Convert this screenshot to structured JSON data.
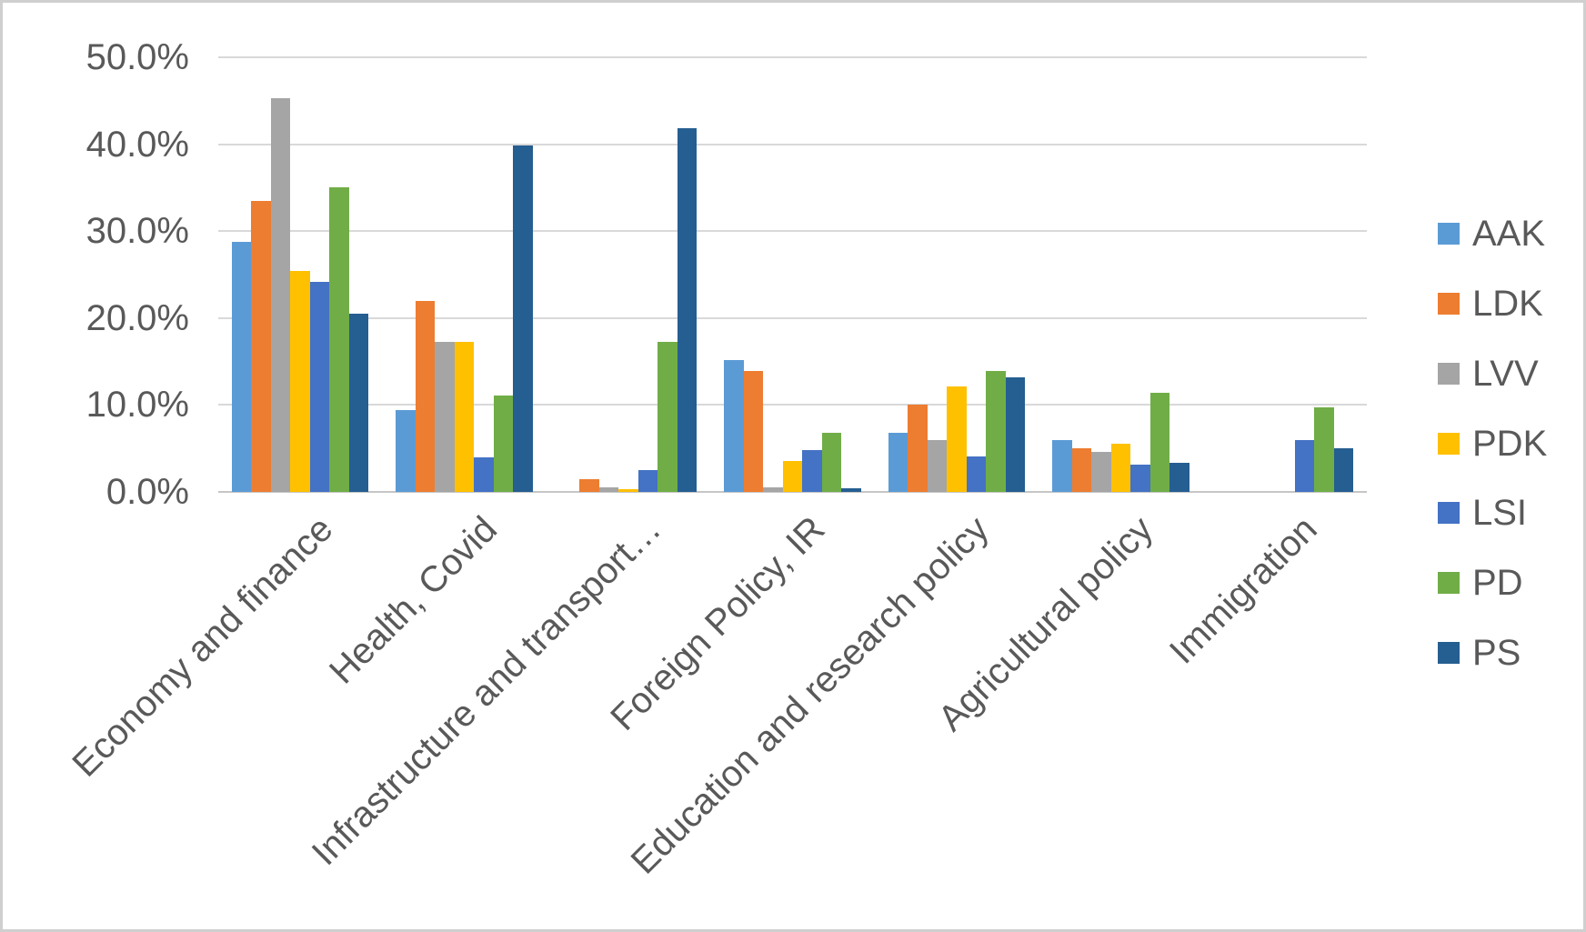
{
  "chart_data": {
    "type": "bar",
    "title": "",
    "categories": [
      "Economy and finance",
      "Health, Covid",
      "Infrastructure and transport…",
      "Foreign Policy, IR",
      "Education and research policy",
      "Agricultural policy",
      "Immigration"
    ],
    "series": [
      {
        "name": "AAK",
        "color": "#5B9BD5",
        "values": [
          28.8,
          9.4,
          0,
          15.2,
          6.8,
          6.0,
          0
        ]
      },
      {
        "name": "LDK",
        "color": "#ED7D31",
        "values": [
          33.5,
          22.0,
          1.5,
          13.9,
          10.0,
          5.0,
          0
        ]
      },
      {
        "name": "LVV",
        "color": "#A5A5A5",
        "values": [
          45.3,
          17.3,
          0.5,
          0.5,
          6.0,
          4.6,
          0
        ]
      },
      {
        "name": "PDK",
        "color": "#FFC000",
        "values": [
          25.4,
          17.3,
          0.3,
          3.6,
          12.1,
          5.5,
          0
        ]
      },
      {
        "name": "LSI",
        "color": "#4472C4",
        "values": [
          24.2,
          4.0,
          2.5,
          4.8,
          4.1,
          3.1,
          6.0
        ]
      },
      {
        "name": "PD",
        "color": "#70AD47",
        "values": [
          35.0,
          11.1,
          17.3,
          6.8,
          13.9,
          11.4,
          9.7
        ]
      },
      {
        "name": "PS",
        "color": "#255E91",
        "values": [
          20.5,
          39.9,
          41.8,
          0.4,
          13.2,
          3.3,
          5.0
        ]
      }
    ],
    "y_axis": {
      "min": 0,
      "max": 50,
      "step": 10,
      "tick_labels": [
        "0.0%",
        "10.0%",
        "20.0%",
        "30.0%",
        "40.0%",
        "50.0%"
      ]
    },
    "grid": "horizontal",
    "legend_position": "right",
    "legend_entries": [
      "AAK",
      "LDK",
      "LVV",
      "PDK",
      "LSI",
      "PD",
      "PS"
    ]
  },
  "colors": {
    "axis_text": "#595959",
    "gridline": "#D9D9D9",
    "axis_line": "#C6C6C6",
    "background": "#FFFFFF",
    "border": "#CFCFCF"
  }
}
